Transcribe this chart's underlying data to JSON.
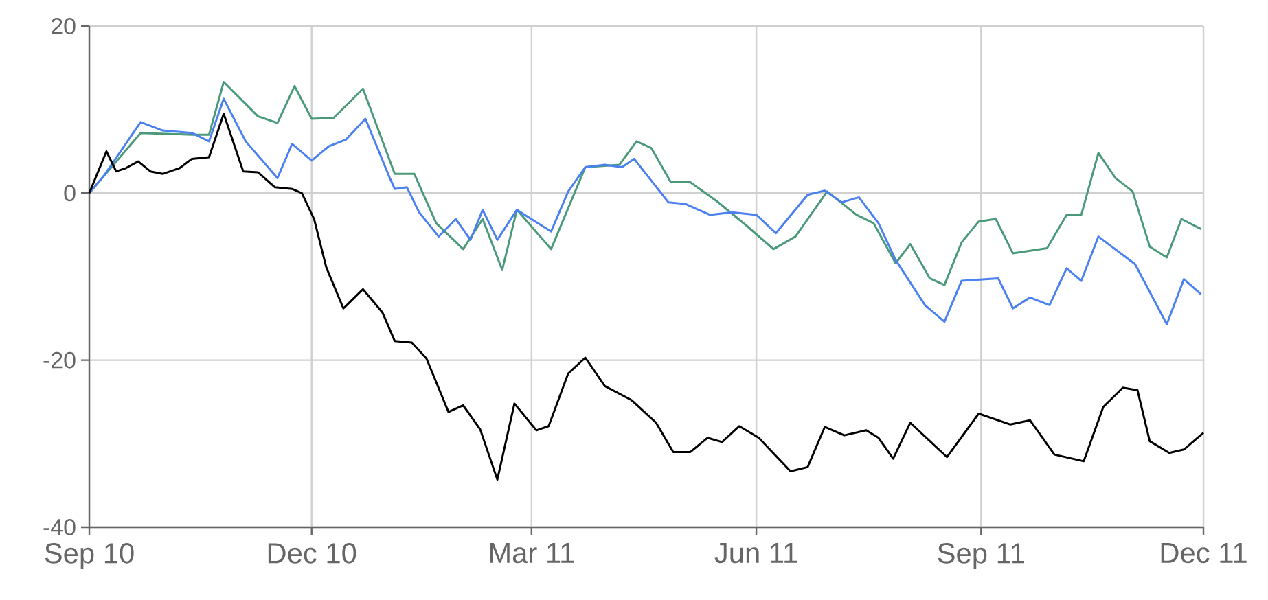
{
  "chart_data": {
    "type": "line",
    "xlim": [
      "2010-09-01",
      "2011-12-01"
    ],
    "xticks": [
      {
        "value": "2010-09-01",
        "label": "Sep 10"
      },
      {
        "value": "2010-12-01",
        "label": "Dec 10"
      },
      {
        "value": "2011-03-01",
        "label": "Mar 11"
      },
      {
        "value": "2011-06-01",
        "label": "Jun 11"
      },
      {
        "value": "2011-09-01",
        "label": "Sep 11"
      },
      {
        "value": "2011-12-01",
        "label": "Dec 11"
      }
    ],
    "ylim": [
      -40,
      20
    ],
    "yticks": [
      -40,
      -20,
      0,
      20
    ],
    "grid": true,
    "marker": "none",
    "line_style": "solid",
    "series": [
      {
        "color": "#4a9a7a",
        "x": [
          "2010-09-01",
          "2010-09-22",
          "2010-10-13",
          "2010-10-20",
          "2010-10-26",
          "2010-11-09",
          "2010-11-17",
          "2010-11-24",
          "2010-12-01",
          "2010-12-10",
          "2010-12-22",
          "2011-01-04",
          "2011-01-12",
          "2011-01-21",
          "2011-02-01",
          "2011-02-09",
          "2011-02-17",
          "2011-02-23",
          "2011-03-09",
          "2011-03-23",
          "2011-04-06",
          "2011-04-13",
          "2011-04-19",
          "2011-04-27",
          "2011-05-05",
          "2011-05-16",
          "2011-05-28",
          "2011-06-08",
          "2011-06-17",
          "2011-06-30",
          "2011-07-12",
          "2011-07-19",
          "2011-07-28",
          "2011-08-03",
          "2011-08-11",
          "2011-08-17",
          "2011-08-24",
          "2011-08-31",
          "2011-09-07",
          "2011-09-14",
          "2011-09-28",
          "2011-10-06",
          "2011-10-12",
          "2011-10-19",
          "2011-10-26",
          "2011-11-02",
          "2011-11-09",
          "2011-11-16",
          "2011-11-22",
          "2011-11-30"
        ],
        "values": [
          0,
          7.2,
          7,
          7,
          13.3,
          9.2,
          8.4,
          12.8,
          8.9,
          9,
          12.5,
          2.3,
          2.3,
          -3.6,
          -6.7,
          -3.1,
          -9.2,
          -2,
          -6.7,
          3.1,
          3.4,
          6.2,
          5.4,
          1.3,
          1.3,
          -1,
          -3.9,
          -6.7,
          -5.2,
          0.2,
          -2.6,
          -3.6,
          -8.4,
          -6.1,
          -10.2,
          -11,
          -5.9,
          -3.4,
          -3.1,
          -7.2,
          -6.6,
          -2.6,
          -2.6,
          4.8,
          1.8,
          0.2,
          -6.4,
          -7.7,
          -3.1,
          -4.3
        ]
      },
      {
        "color": "#4a80f0",
        "x": [
          "2010-09-01",
          "2010-09-07",
          "2010-09-22",
          "2010-10-01",
          "2010-10-13",
          "2010-10-20",
          "2010-10-26",
          "2010-11-04",
          "2010-11-17",
          "2010-11-23",
          "2010-12-01",
          "2010-12-08",
          "2010-12-15",
          "2010-12-23",
          "2011-01-02",
          "2011-01-04",
          "2011-01-09",
          "2011-01-14",
          "2011-01-22",
          "2011-01-29",
          "2011-02-04",
          "2011-02-09",
          "2011-02-15",
          "2011-02-23",
          "2011-03-09",
          "2011-03-16",
          "2011-03-23",
          "2011-03-31",
          "2011-04-07",
          "2011-04-12",
          "2011-04-26",
          "2011-05-03",
          "2011-05-13",
          "2011-05-22",
          "2011-06-01",
          "2011-06-09",
          "2011-06-22",
          "2011-06-29",
          "2011-07-06",
          "2011-07-13",
          "2011-07-21",
          "2011-07-28",
          "2011-08-09",
          "2011-08-17",
          "2011-08-24",
          "2011-09-08",
          "2011-09-14",
          "2011-09-21",
          "2011-09-29",
          "2011-10-06",
          "2011-10-12",
          "2011-10-19",
          "2011-11-03",
          "2011-11-16",
          "2011-11-23",
          "2011-11-30"
        ],
        "values": [
          0,
          2.1,
          8.5,
          7.5,
          7.2,
          6.2,
          11.3,
          6.2,
          1.8,
          5.9,
          3.9,
          5.6,
          6.4,
          8.9,
          1.8,
          0.5,
          0.7,
          -2.3,
          -5.2,
          -3.1,
          -5.6,
          -2,
          -5.6,
          -2,
          -4.6,
          0.2,
          3.1,
          3.4,
          3.1,
          4.1,
          -1.1,
          -1.3,
          -2.6,
          -2.3,
          -2.6,
          -4.8,
          -0.2,
          0.3,
          -1.1,
          -0.5,
          -3.6,
          -8,
          -13.4,
          -15.4,
          -10.5,
          -10.2,
          -13.8,
          -12.5,
          -13.4,
          -9,
          -10.5,
          -5.2,
          -8.5,
          -15.7,
          -10.3,
          -12.1
        ]
      },
      {
        "color": "#000000",
        "x": [
          "2010-09-01",
          "2010-09-08",
          "2010-09-12",
          "2010-09-16",
          "2010-09-21",
          "2010-09-26",
          "2010-10-01",
          "2010-10-08",
          "2010-10-13",
          "2010-10-20",
          "2010-10-26",
          "2010-11-03",
          "2010-11-09",
          "2010-11-16",
          "2010-11-23",
          "2010-11-27",
          "2010-12-02",
          "2010-12-07",
          "2010-12-14",
          "2010-12-22",
          "2010-12-30",
          "2011-01-04",
          "2011-01-11",
          "2011-01-17",
          "2011-01-26",
          "2011-02-01",
          "2011-02-08",
          "2011-02-15",
          "2011-02-22",
          "2011-03-03",
          "2011-03-08",
          "2011-03-16",
          "2011-03-23",
          "2011-03-31",
          "2011-04-11",
          "2011-04-21",
          "2011-04-28",
          "2011-05-05",
          "2011-05-12",
          "2011-05-18",
          "2011-05-25",
          "2011-06-02",
          "2011-06-15",
          "2011-06-22",
          "2011-06-29",
          "2011-07-07",
          "2011-07-16",
          "2011-07-21",
          "2011-07-27",
          "2011-08-03",
          "2011-08-18",
          "2011-08-31",
          "2011-09-13",
          "2011-09-21",
          "2011-10-01",
          "2011-10-13",
          "2011-10-21",
          "2011-10-29",
          "2011-11-04",
          "2011-11-09",
          "2011-11-17",
          "2011-11-23",
          "2011-12-01"
        ],
        "values": [
          0,
          5,
          2.6,
          3,
          3.8,
          2.6,
          2.3,
          3,
          4.1,
          4.3,
          9.5,
          2.6,
          2.5,
          0.7,
          0.5,
          0,
          -3.1,
          -8.9,
          -13.8,
          -11.5,
          -14.3,
          -17.7,
          -17.9,
          -19.8,
          -26.2,
          -25.4,
          -28.3,
          -34.3,
          -25.2,
          -28.4,
          -27.9,
          -21.6,
          -19.7,
          -23.1,
          -24.8,
          -27.5,
          -31,
          -31,
          -29.3,
          -29.8,
          -27.9,
          -29.3,
          -33.3,
          -32.8,
          -28,
          -29,
          -28.4,
          -29.3,
          -31.8,
          -27.5,
          -31.6,
          -26.4,
          -27.7,
          -27.2,
          -31.3,
          -32.1,
          -25.6,
          -23.3,
          -23.6,
          -29.7,
          -31.1,
          -30.7,
          -28.7
        ]
      }
    ]
  }
}
